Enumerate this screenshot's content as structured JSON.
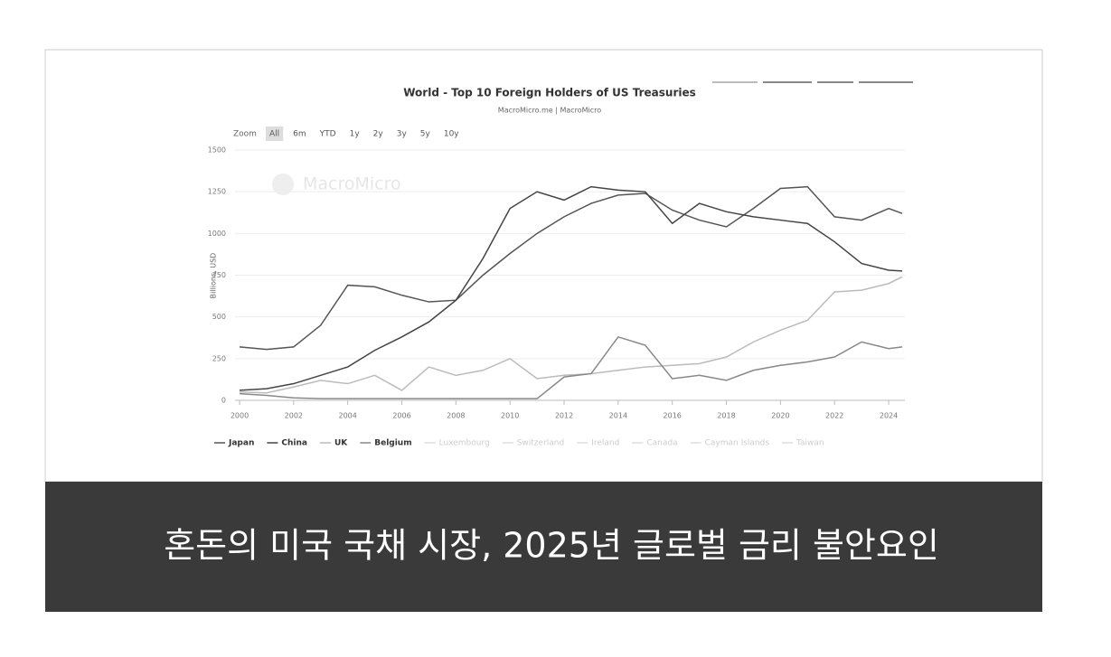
{
  "chart_data": {
    "type": "line",
    "title": "World - Top 10 Foreign Holders of US Treasuries",
    "subtitle": "MacroMicro.me | MacroMicro",
    "watermark": "MacroMicro",
    "zoom_label": "Zoom",
    "zoom_buttons": [
      "All",
      "6m",
      "YTD",
      "1y",
      "2y",
      "3y",
      "5y",
      "10y"
    ],
    "y_label": "Billions, USD",
    "x": [
      2000,
      2001,
      2002,
      2003,
      2004,
      2005,
      2006,
      2007,
      2008,
      2009,
      2010,
      2011,
      2012,
      2013,
      2014,
      2015,
      2016,
      2017,
      2018,
      2019,
      2020,
      2021,
      2022,
      2023,
      2024,
      2024.5
    ],
    "series": [
      {
        "name": "Japan",
        "color": "#555555",
        "values": [
          320,
          305,
          320,
          450,
          690,
          680,
          630,
          590,
          600,
          750,
          880,
          1000,
          1100,
          1180,
          1230,
          1240,
          1140,
          1080,
          1040,
          1150,
          1270,
          1280,
          1100,
          1080,
          1150,
          1120
        ]
      },
      {
        "name": "China",
        "color": "#444444",
        "values": [
          60,
          70,
          100,
          150,
          200,
          300,
          380,
          470,
          600,
          850,
          1150,
          1250,
          1200,
          1280,
          1260,
          1250,
          1060,
          1180,
          1130,
          1100,
          1080,
          1060,
          950,
          820,
          780,
          775
        ]
      },
      {
        "name": "UK",
        "color": "#bbbbbb",
        "values": [
          50,
          45,
          80,
          120,
          100,
          150,
          60,
          200,
          150,
          180,
          250,
          130,
          150,
          160,
          180,
          200,
          210,
          220,
          260,
          350,
          420,
          480,
          650,
          660,
          700,
          740
        ]
      },
      {
        "name": "Belgium",
        "color": "#888888",
        "values": [
          40,
          30,
          15,
          10,
          10,
          10,
          10,
          10,
          10,
          10,
          10,
          10,
          140,
          160,
          380,
          330,
          130,
          150,
          120,
          180,
          210,
          230,
          260,
          350,
          310,
          320
        ]
      }
    ],
    "hidden_series": [
      "Luxembourg",
      "Switzerland",
      "Ireland",
      "Canada",
      "Cayman Islands",
      "Taiwan"
    ],
    "xlim": [
      2000,
      2024.6
    ],
    "xticks": [
      2000,
      2002,
      2004,
      2006,
      2008,
      2010,
      2012,
      2014,
      2016,
      2018,
      2020,
      2022,
      2024
    ],
    "ylim": [
      0,
      1500
    ],
    "yticks": [
      0,
      250,
      500,
      750,
      1000,
      1250,
      1500
    ],
    "grid": true
  },
  "caption": "혼돈의 미국 국채 시장, 2025년 글로벌 금리 불안요인"
}
